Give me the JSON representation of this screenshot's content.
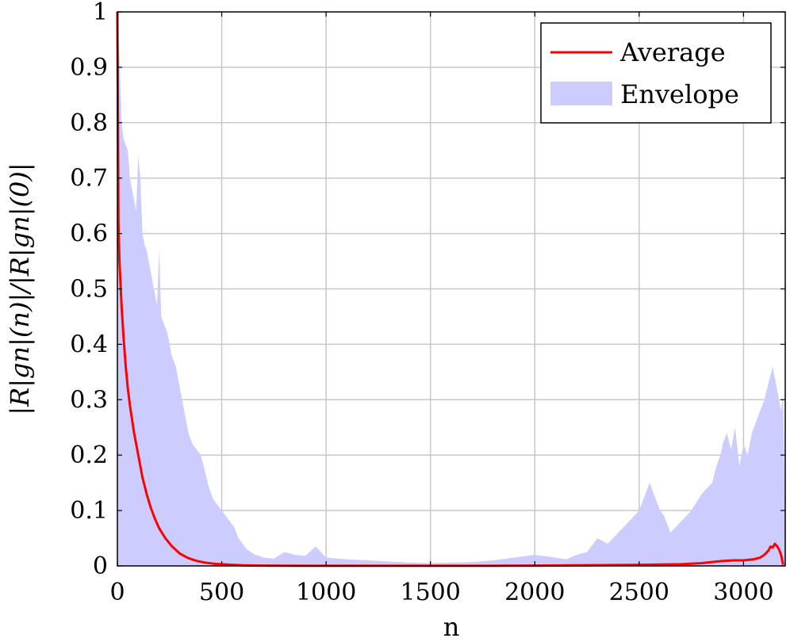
{
  "chart_data": {
    "type": "area",
    "title": "",
    "xlabel": "n",
    "ylabel": "|R|gn|(n)|/|R|gn|(0)|",
    "xlim": [
      0,
      3200
    ],
    "ylim": [
      0,
      1
    ],
    "xticks": [
      0,
      500,
      1000,
      1500,
      2000,
      2500,
      3000
    ],
    "yticks": [
      0,
      0.1,
      0.2,
      0.3,
      0.4,
      0.5,
      0.6,
      0.7,
      0.8,
      0.9,
      1
    ],
    "xtick_labels": [
      "0",
      "500",
      "1000",
      "1500",
      "2000",
      "2500",
      "3000"
    ],
    "ytick_labels": [
      "0",
      "0.1",
      "0.2",
      "0.3",
      "0.4",
      "0.5",
      "0.6",
      "0.7",
      "0.8",
      "0.9",
      "1"
    ],
    "grid": true,
    "legend_position": "top-right",
    "series": [
      {
        "name": "Average",
        "kind": "line",
        "color": "#ff0000",
        "x": [
          0,
          5,
          10,
          20,
          30,
          40,
          50,
          60,
          80,
          100,
          120,
          140,
          160,
          180,
          200,
          230,
          260,
          300,
          340,
          380,
          420,
          460,
          500,
          550,
          600,
          700,
          800,
          900,
          1000,
          1200,
          1500,
          1800,
          2000,
          2200,
          2500,
          2700,
          2800,
          2850,
          2900,
          2950,
          3000,
          3050,
          3080,
          3100,
          3120,
          3130,
          3140,
          3150,
          3160,
          3170,
          3180,
          3190
        ],
        "y": [
          1.0,
          0.62,
          0.55,
          0.47,
          0.41,
          0.36,
          0.32,
          0.29,
          0.24,
          0.2,
          0.16,
          0.13,
          0.105,
          0.085,
          0.068,
          0.05,
          0.036,
          0.022,
          0.014,
          0.009,
          0.006,
          0.004,
          0.003,
          0.002,
          0.001,
          0.0005,
          0.0003,
          0.0002,
          0.0002,
          0.0001,
          0.0001,
          0.0002,
          0.0005,
          0.001,
          0.002,
          0.003,
          0.005,
          0.007,
          0.009,
          0.01,
          0.01,
          0.012,
          0.015,
          0.02,
          0.028,
          0.035,
          0.033,
          0.04,
          0.036,
          0.03,
          0.02,
          0.002
        ]
      },
      {
        "name": "Envelope",
        "kind": "area",
        "color": "#ccccff",
        "x": [
          0,
          5,
          10,
          20,
          30,
          40,
          50,
          60,
          70,
          80,
          90,
          100,
          110,
          120,
          130,
          140,
          150,
          160,
          170,
          180,
          190,
          200,
          210,
          220,
          230,
          240,
          250,
          260,
          270,
          280,
          290,
          300,
          310,
          320,
          330,
          340,
          350,
          360,
          380,
          400,
          420,
          440,
          460,
          480,
          500,
          520,
          540,
          560,
          580,
          600,
          620,
          640,
          660,
          680,
          700,
          750,
          800,
          850,
          900,
          950,
          1000,
          1100,
          1200,
          1300,
          1400,
          1500,
          1600,
          1700,
          1800,
          1900,
          2000,
          2100,
          2150,
          2200,
          2250,
          2300,
          2350,
          2400,
          2450,
          2500,
          2550,
          2580,
          2600,
          2620,
          2650,
          2700,
          2750,
          2800,
          2850,
          2870,
          2890,
          2900,
          2920,
          2940,
          2960,
          2980,
          3000,
          3020,
          3040,
          3060,
          3080,
          3100,
          3120,
          3140,
          3150,
          3160,
          3170,
          3180,
          3190,
          3195,
          3200
        ],
        "y": [
          1.0,
          0.95,
          0.92,
          0.8,
          0.77,
          0.76,
          0.75,
          0.7,
          0.68,
          0.66,
          0.64,
          0.74,
          0.7,
          0.6,
          0.58,
          0.57,
          0.55,
          0.53,
          0.51,
          0.49,
          0.47,
          0.57,
          0.45,
          0.44,
          0.43,
          0.42,
          0.4,
          0.38,
          0.37,
          0.36,
          0.34,
          0.32,
          0.3,
          0.28,
          0.26,
          0.24,
          0.23,
          0.22,
          0.21,
          0.2,
          0.17,
          0.14,
          0.12,
          0.11,
          0.1,
          0.09,
          0.08,
          0.07,
          0.05,
          0.04,
          0.03,
          0.025,
          0.02,
          0.018,
          0.015,
          0.013,
          0.025,
          0.02,
          0.018,
          0.035,
          0.015,
          0.012,
          0.01,
          0.008,
          0.006,
          0.005,
          0.006,
          0.007,
          0.01,
          0.015,
          0.02,
          0.015,
          0.012,
          0.02,
          0.025,
          0.05,
          0.04,
          0.06,
          0.08,
          0.1,
          0.15,
          0.12,
          0.1,
          0.09,
          0.06,
          0.08,
          0.1,
          0.13,
          0.15,
          0.18,
          0.2,
          0.22,
          0.24,
          0.21,
          0.25,
          0.18,
          0.22,
          0.2,
          0.24,
          0.26,
          0.28,
          0.3,
          0.33,
          0.36,
          0.34,
          0.32,
          0.3,
          0.28,
          0.31,
          0.2,
          0.0
        ]
      }
    ]
  }
}
